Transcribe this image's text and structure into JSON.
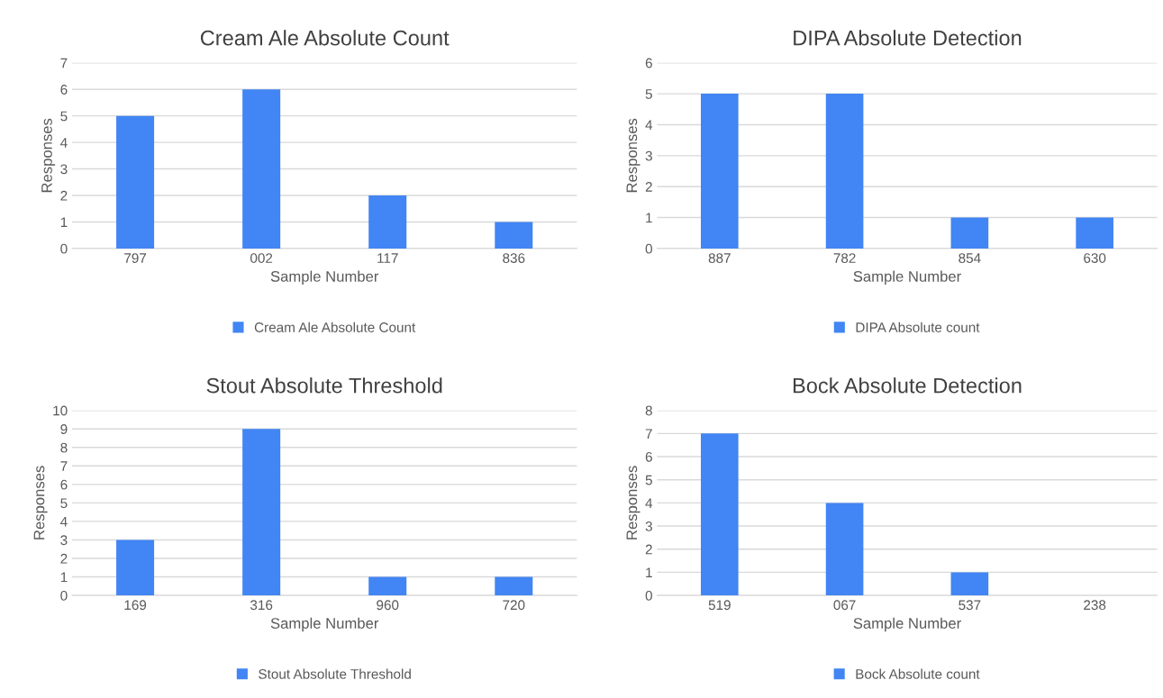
{
  "chart_data": [
    {
      "type": "bar",
      "title": "Cream Ale Absolute Count",
      "xlabel": "Sample Number",
      "ylabel": "Responses",
      "categories": [
        "797",
        "002",
        "117",
        "836"
      ],
      "series": [
        {
          "name": "Cream Ale Absolute Count",
          "color": "#4285f4",
          "values": [
            5,
            6,
            2,
            1
          ]
        }
      ],
      "ylim": [
        0,
        7
      ],
      "yticks": [
        0,
        1,
        2,
        3,
        4,
        5,
        6,
        7
      ],
      "grid": "y",
      "legend": "bottom"
    },
    {
      "type": "bar",
      "title": "DIPA Absolute Detection",
      "xlabel": "Sample Number",
      "ylabel": "Responses",
      "categories": [
        "887",
        "782",
        "854",
        "630"
      ],
      "series": [
        {
          "name": "DIPA Absolute count",
          "color": "#4285f4",
          "values": [
            5,
            5,
            1,
            1
          ]
        }
      ],
      "ylim": [
        0,
        6
      ],
      "yticks": [
        0,
        1,
        2,
        3,
        4,
        5,
        6
      ],
      "grid": "y",
      "legend": "bottom"
    },
    {
      "type": "bar",
      "title": "Stout Absolute Threshold",
      "xlabel": "Sample Number",
      "ylabel": "Responses",
      "categories": [
        "169",
        "316",
        "960",
        "720"
      ],
      "series": [
        {
          "name": "Stout Absolute Threshold",
          "color": "#4285f4",
          "values": [
            3,
            9,
            1,
            1
          ]
        }
      ],
      "ylim": [
        0,
        10
      ],
      "yticks": [
        0,
        1,
        2,
        3,
        4,
        5,
        6,
        7,
        8,
        9,
        10
      ],
      "grid": "y",
      "legend": "bottom"
    },
    {
      "type": "bar",
      "title": "Bock Absolute Detection",
      "xlabel": "Sample Number",
      "ylabel": "Responses",
      "categories": [
        "519",
        "067",
        "537",
        "238"
      ],
      "series": [
        {
          "name": "Bock Absolute count",
          "color": "#4285f4",
          "values": [
            7,
            4,
            1,
            0
          ]
        }
      ],
      "ylim": [
        0,
        8
      ],
      "yticks": [
        0,
        1,
        2,
        3,
        4,
        5,
        6,
        7,
        8
      ],
      "grid": "y",
      "legend": "bottom"
    }
  ]
}
